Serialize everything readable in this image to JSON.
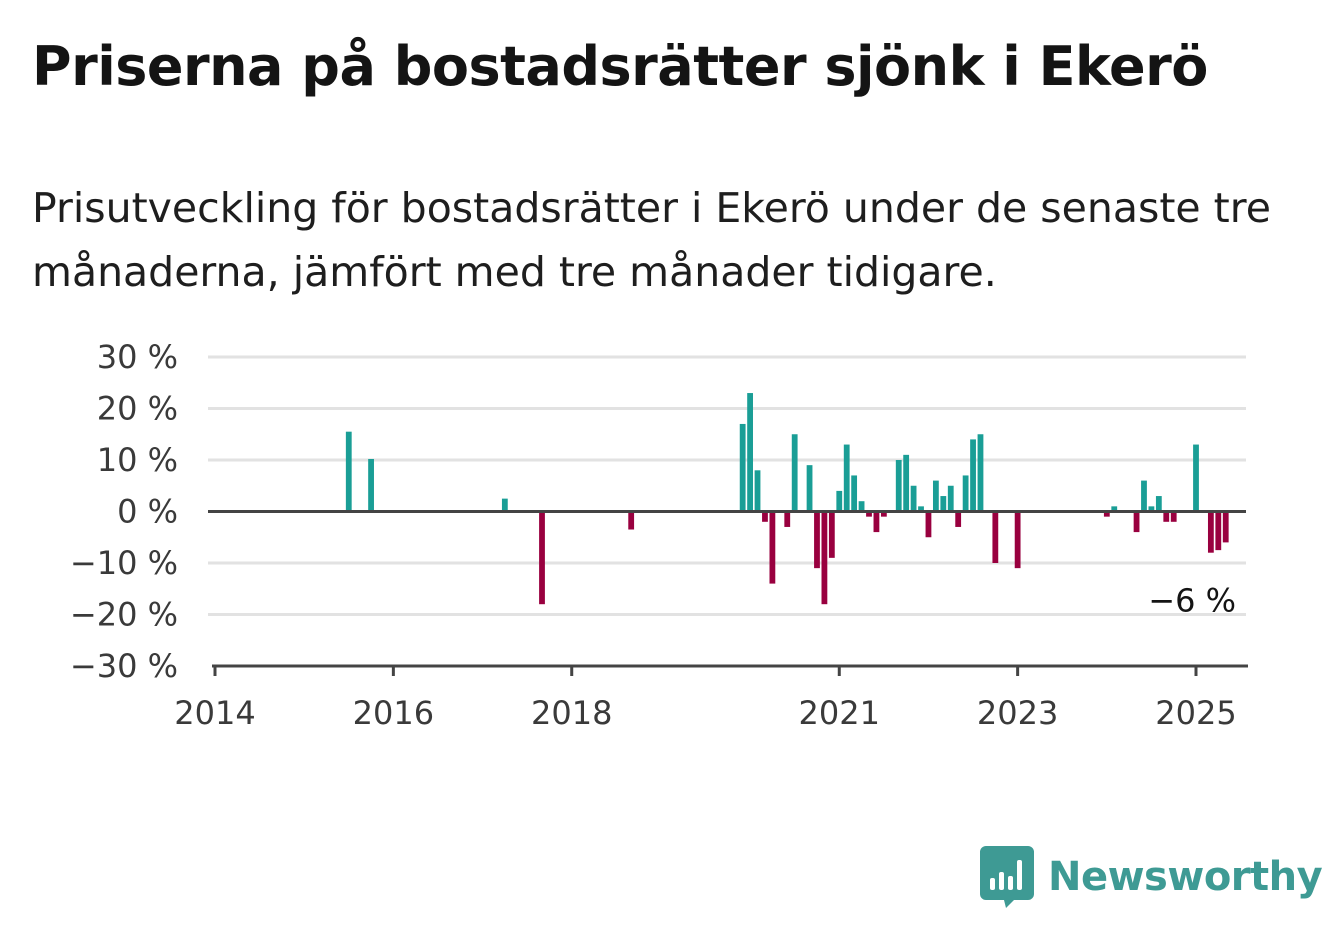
{
  "header": {
    "title": "Priserna på bostadsrätter sjönk i Ekerö",
    "subtitle": "Prisutveckling för bostadsrätter i Ekerö under de senaste tre månaderna, jämfört med tre månader tidigare."
  },
  "brand": {
    "name": "Newsworthy",
    "color": "#3e9a94",
    "icon": "bar-chart-speech-bubble-icon"
  },
  "colors": {
    "positive": "#1a9e96",
    "negative": "#99003f",
    "grid": "#e2e2e2",
    "axis": "#444444"
  },
  "chart_data": {
    "type": "bar",
    "title": "Priserna på bostadsrätter sjönk i Ekerö",
    "xlabel": "",
    "ylabel": "",
    "ylim": [
      -30,
      30
    ],
    "xlim": [
      "2014-01",
      "2025-06"
    ],
    "y_ticks": [
      30,
      20,
      10,
      0,
      -10,
      -20,
      -30
    ],
    "y_tick_labels": [
      "30 %",
      "20 %",
      "10 %",
      "0 %",
      "−10 %",
      "−20 %",
      "−30 %"
    ],
    "x_ticks": [
      "2014-01",
      "2016-01",
      "2018-01",
      "2021-01",
      "2023-01",
      "2025-01"
    ],
    "x_tick_labels": [
      "2014",
      "2016",
      "2018",
      "2021",
      "2023",
      "2025"
    ],
    "grid": true,
    "legend": "none",
    "last_value_label": "−6 %",
    "series": [
      {
        "points": [
          [
            "2015-07",
            15.5
          ],
          [
            "2015-10",
            10.2
          ],
          [
            "2017-04",
            2.5
          ],
          [
            "2017-09",
            -18
          ],
          [
            "2018-09",
            -3.5
          ],
          [
            "2019-12",
            17
          ],
          [
            "2020-01",
            23
          ],
          [
            "2020-02",
            8
          ],
          [
            "2020-03",
            -2
          ],
          [
            "2020-04",
            -14
          ],
          [
            "2020-06",
            -3
          ],
          [
            "2020-07",
            15
          ],
          [
            "2020-09",
            9
          ],
          [
            "2020-10",
            -11
          ],
          [
            "2020-11",
            -18
          ],
          [
            "2020-12",
            -9
          ],
          [
            "2021-01",
            4
          ],
          [
            "2021-02",
            13
          ],
          [
            "2021-03",
            7
          ],
          [
            "2021-04",
            2
          ],
          [
            "2021-05",
            -1
          ],
          [
            "2021-06",
            -4
          ],
          [
            "2021-07",
            -1
          ],
          [
            "2021-09",
            10
          ],
          [
            "2021-10",
            11
          ],
          [
            "2021-11",
            5
          ],
          [
            "2021-12",
            1
          ],
          [
            "2022-01",
            -5
          ],
          [
            "2022-02",
            6
          ],
          [
            "2022-03",
            3
          ],
          [
            "2022-04",
            5
          ],
          [
            "2022-05",
            -3
          ],
          [
            "2022-06",
            7
          ],
          [
            "2022-07",
            14
          ],
          [
            "2022-08",
            15
          ],
          [
            "2022-10",
            -10
          ],
          [
            "2023-01",
            -11
          ],
          [
            "2024-01",
            -1
          ],
          [
            "2024-02",
            1
          ],
          [
            "2024-05",
            -4
          ],
          [
            "2024-06",
            6
          ],
          [
            "2024-07",
            1
          ],
          [
            "2024-08",
            3
          ],
          [
            "2024-09",
            -2
          ],
          [
            "2024-10",
            -2
          ],
          [
            "2025-01",
            13
          ],
          [
            "2025-03",
            -8
          ],
          [
            "2025-04",
            -7.5
          ],
          [
            "2025-05",
            -6
          ]
        ]
      }
    ]
  }
}
